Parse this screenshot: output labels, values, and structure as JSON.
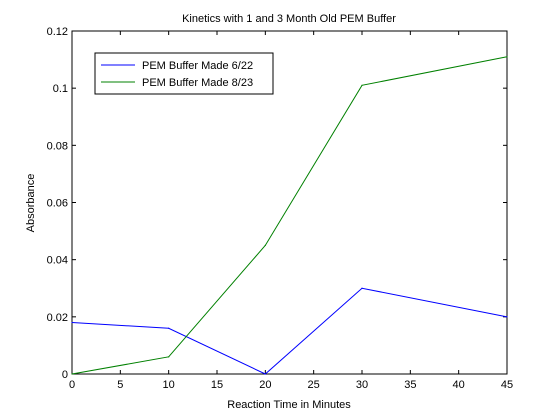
{
  "chart_data": {
    "type": "line",
    "title": "Kinetics with 1 and 3 Month Old PEM Buffer",
    "xlabel": "Reaction Time in Minutes",
    "ylabel": "Absorbance",
    "xlim": [
      0,
      45
    ],
    "ylim": [
      0,
      0.12
    ],
    "x_ticks": [
      "0",
      "5",
      "10",
      "15",
      "20",
      "25",
      "30",
      "35",
      "40",
      "45"
    ],
    "y_ticks": [
      "0",
      "0.02",
      "0.04",
      "0.06",
      "0.08",
      "0.1",
      "0.12"
    ],
    "grid": false,
    "legend_position": "top-left",
    "x": [
      0,
      10,
      20,
      30,
      45
    ],
    "series": [
      {
        "name": "PEM Buffer Made 6/22",
        "color": "#0000ff",
        "values": [
          0.018,
          0.016,
          0.0,
          0.03,
          0.02
        ]
      },
      {
        "name": "PEM Buffer Made 8/23",
        "color": "#008000",
        "values": [
          0.0,
          0.006,
          0.045,
          0.101,
          0.111
        ]
      }
    ]
  }
}
